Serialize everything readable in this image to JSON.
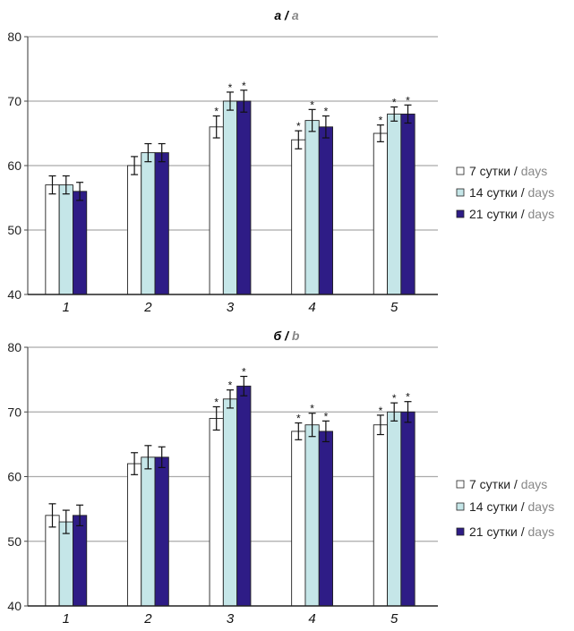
{
  "chart_data": [
    {
      "type": "bar",
      "title": "а",
      "title_en": "a",
      "categories": [
        "1",
        "2",
        "3",
        "4",
        "5"
      ],
      "ylim": [
        40,
        80
      ],
      "yticks": [
        40,
        50,
        60,
        70,
        80
      ],
      "grid": true,
      "legend_position": "right",
      "series": [
        {
          "name": "7 сутки",
          "name_en": "days",
          "color": "#ffffff",
          "values": [
            57,
            60,
            66,
            64,
            65
          ],
          "errors": [
            1.4,
            1.4,
            1.7,
            1.4,
            1.3
          ],
          "significant": [
            false,
            false,
            true,
            true,
            true
          ]
        },
        {
          "name": "14 сутки",
          "name_en": "days",
          "color": "#c5e6e8",
          "values": [
            57,
            62,
            70,
            67,
            68
          ],
          "errors": [
            1.4,
            1.4,
            1.4,
            1.7,
            1.1
          ],
          "significant": [
            false,
            false,
            true,
            true,
            true
          ]
        },
        {
          "name": "21 сутки",
          "name_en": "days",
          "color": "#2e1c86",
          "values": [
            56,
            62,
            70,
            66,
            68
          ],
          "errors": [
            1.4,
            1.4,
            1.7,
            1.7,
            1.4
          ],
          "significant": [
            false,
            false,
            true,
            true,
            true
          ]
        }
      ],
      "significance_mark": "*"
    },
    {
      "type": "bar",
      "title": "б",
      "title_en": "b",
      "categories": [
        "1",
        "2",
        "3",
        "4",
        "5"
      ],
      "ylim": [
        40,
        80
      ],
      "yticks": [
        40,
        50,
        60,
        70,
        80
      ],
      "grid": true,
      "legend_position": "right",
      "series": [
        {
          "name": "7 сутки",
          "name_en": "days",
          "color": "#ffffff",
          "values": [
            54,
            62,
            69,
            67,
            68
          ],
          "errors": [
            1.8,
            1.7,
            1.8,
            1.3,
            1.5
          ],
          "significant": [
            false,
            false,
            true,
            true,
            true
          ]
        },
        {
          "name": "14 сутки",
          "name_en": "days",
          "color": "#c5e6e8",
          "values": [
            53,
            63,
            72,
            68,
            70
          ],
          "errors": [
            1.8,
            1.8,
            1.4,
            1.8,
            1.4
          ],
          "significant": [
            false,
            false,
            true,
            true,
            true
          ]
        },
        {
          "name": "21 сутки",
          "name_en": "days",
          "color": "#2e1c86",
          "values": [
            54,
            63,
            74,
            67,
            70
          ],
          "errors": [
            1.6,
            1.6,
            1.5,
            1.6,
            1.6
          ],
          "significant": [
            false,
            false,
            true,
            true,
            true
          ]
        }
      ],
      "significance_mark": "*"
    }
  ]
}
